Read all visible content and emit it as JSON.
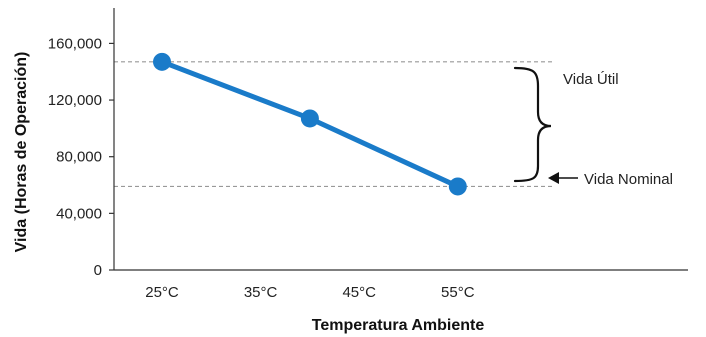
{
  "chart_data": {
    "type": "line",
    "title": "",
    "xlabel": "Temperatura Ambiente",
    "ylabel": "Vida (Horas de Operación)",
    "x_tick_labels": [
      "25°C",
      "35°C",
      "45°C",
      "55°C"
    ],
    "y_ticks": [
      0,
      40000,
      80000,
      120000,
      160000
    ],
    "y_tick_labels": [
      "0",
      "40,000",
      "80,000",
      "120,000",
      "160,000"
    ],
    "ylim": [
      0,
      185000
    ],
    "series": [
      {
        "values": [
          {
            "x": "25°C",
            "y": 147000
          },
          {
            "x": "40°C",
            "y": 107000
          },
          {
            "x": "55°C",
            "y": 59000
          }
        ]
      }
    ],
    "reference_lines": [
      {
        "y": 147000,
        "style": "dashed"
      },
      {
        "y": 59000,
        "style": "dashed"
      }
    ],
    "annotations": {
      "useful_life_label": "Vida Útil",
      "nominal_life_label": "Vida Nominal"
    },
    "grid": false,
    "colors": {
      "series_line": "#1a7bc9",
      "marker": "#1a7bc9",
      "reference_line": "#999999",
      "axis": "#333333",
      "text": "#222222"
    }
  }
}
